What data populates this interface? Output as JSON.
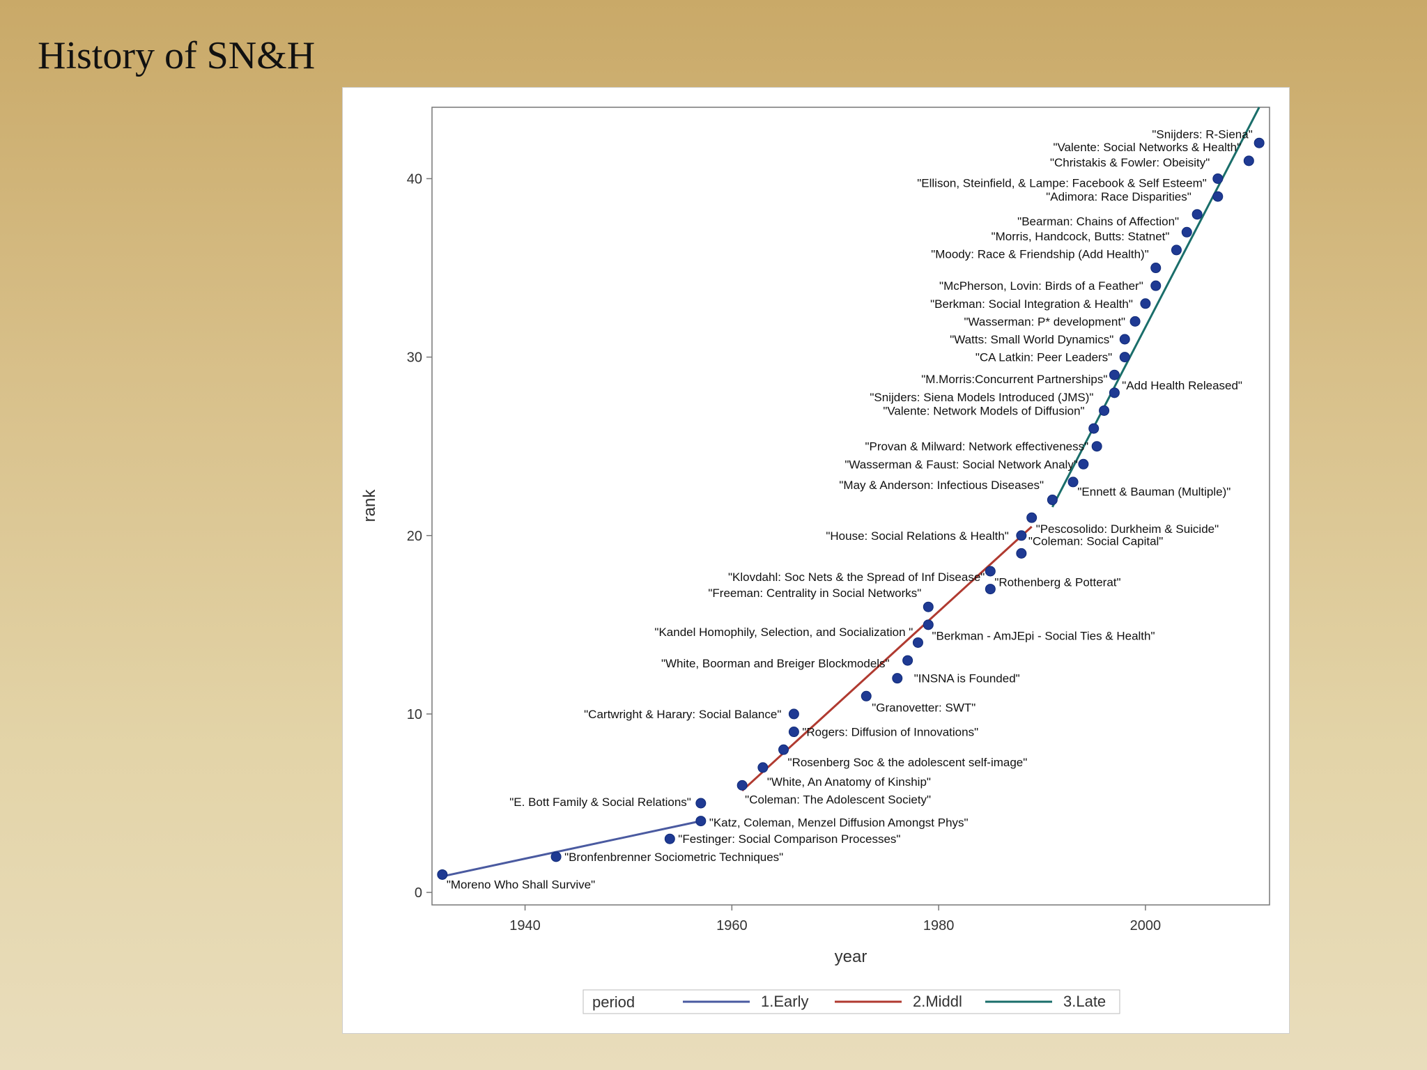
{
  "slide": {
    "title": "History of SN&H"
  },
  "chart_data": {
    "type": "scatter",
    "xlabel": "year",
    "ylabel": "rank",
    "xlim": [
      1931,
      2012
    ],
    "ylim": [
      -0.7,
      44
    ],
    "x_ticks": [
      1940,
      1960,
      1980,
      2000
    ],
    "y_ticks": [
      0,
      10,
      20,
      30,
      40
    ],
    "grid": false,
    "legend": {
      "title": "period",
      "placement": "bottom",
      "entries": [
        {
          "name": "1.Early",
          "color": "#4a5aa0"
        },
        {
          "name": "2.Middl",
          "color": "#b03a30"
        },
        {
          "name": "3.Late",
          "color": "#1a6e6a"
        }
      ]
    },
    "marker_color": "#1f3a93",
    "series_lines": [
      {
        "name": "1.Early",
        "color": "#4a5aa0",
        "x": [
          1932,
          1957
        ],
        "y": [
          0.9,
          4.0
        ]
      },
      {
        "name": "2.Middl",
        "color": "#b03a30",
        "x": [
          1961,
          1989
        ],
        "y": [
          5.7,
          20.5
        ]
      },
      {
        "name": "3.Late",
        "color": "#1a6e6a",
        "x": [
          1991,
          2011
        ],
        "y": [
          21.6,
          44.0
        ]
      }
    ],
    "points": [
      {
        "x": 1932,
        "y": 1,
        "label": "\"Moreno Who Shall Survive\"",
        "anchor": "start",
        "dx": 6,
        "dy": 20
      },
      {
        "x": 1943,
        "y": 2,
        "label": "\"Bronfenbrenner Sociometric Techniques\"",
        "anchor": "start",
        "dx": 12,
        "dy": 6
      },
      {
        "x": 1954,
        "y": 3,
        "label": "\"Festinger: Social Comparison Processes\"",
        "anchor": "start",
        "dx": 12,
        "dy": 6
      },
      {
        "x": 1957,
        "y": 4,
        "label": "\"Katz, Coleman, Menzel Diffusion Amongst Phys\"",
        "anchor": "start",
        "dx": 12,
        "dy": 8
      },
      {
        "x": 1957,
        "y": 5,
        "label": "\"E. Bott Family & Social Relations\"",
        "anchor": "end",
        "dx": -14,
        "dy": 4
      },
      {
        "x": 1961,
        "y": 6,
        "label": "\"Coleman: The Adolescent Society\"",
        "anchor": "start",
        "dx": 4,
        "dy": 26
      },
      {
        "x": 1963,
        "y": 7,
        "label": "\"White, An Anatomy of Kinship\"",
        "anchor": "start",
        "dx": 6,
        "dy": 26
      },
      {
        "x": 1965,
        "y": 8,
        "label": "\"Rosenberg Soc & the adolescent self-image\"",
        "anchor": "start",
        "dx": 6,
        "dy": 24
      },
      {
        "x": 1966,
        "y": 9,
        "label": "\"Rogers: Diffusion of Innovations\"",
        "anchor": "start",
        "dx": 12,
        "dy": 6
      },
      {
        "x": 1966,
        "y": 10,
        "label": "\"Cartwright & Harary: Social Balance\"",
        "anchor": "end",
        "dx": -18,
        "dy": 6
      },
      {
        "x": 1973,
        "y": 11,
        "label": "\"Granovetter: SWT\"",
        "anchor": "start",
        "dx": 8,
        "dy": 22
      },
      {
        "x": 1976,
        "y": 12,
        "label": "\"INSNA is Founded\"",
        "anchor": "start",
        "dx": 24,
        "dy": 6
      },
      {
        "x": 1977,
        "y": 13,
        "label": "\"White, Boorman and Breiger Blockmodels\"",
        "anchor": "end",
        "dx": -26,
        "dy": 10
      },
      {
        "x": 1978,
        "y": 14,
        "label": "\"Berkman  - AmJEpi - Social Ties & Health\"",
        "anchor": "start",
        "dx": 20,
        "dy": -4
      },
      {
        "x": 1979,
        "y": 15,
        "label": "\"Kandel Homophily, Selection, and Socialization \"",
        "anchor": "end",
        "dx": -22,
        "dy": 16
      },
      {
        "x": 1979,
        "y": 16,
        "label": "\"Freeman: Centrality in Social Networks\"",
        "anchor": "end",
        "dx": -10,
        "dy": -14
      },
      {
        "x": 1985,
        "y": 17,
        "label": "\"Rothenberg & Potterat\"",
        "anchor": "start",
        "dx": 6,
        "dy": -4
      },
      {
        "x": 1985,
        "y": 18,
        "label": "\"Klovdahl: Soc Nets & the Spread of Inf Disease\"",
        "anchor": "end",
        "dx": -8,
        "dy": 14
      },
      {
        "x": 1988,
        "y": 19,
        "label": "\"Coleman: Social Capital\"",
        "anchor": "start",
        "dx": 10,
        "dy": -12
      },
      {
        "x": 1988,
        "y": 20,
        "label": "\"House: Social Relations & Health\"",
        "anchor": "end",
        "dx": -18,
        "dy": 6
      },
      {
        "x": 1989,
        "y": 21,
        "label": "\"Pescosolido: Durkheim & Suicide\"",
        "anchor": "start",
        "dx": 6,
        "dy": 22
      },
      {
        "x": 1991,
        "y": 22,
        "label": "\"Ennett & Bauman (Multiple)\"",
        "anchor": "start",
        "dx": 36,
        "dy": -6
      },
      {
        "x": 1993,
        "y": 23,
        "label": "\"May & Anderson: Infectious Diseases\"",
        "anchor": "end",
        "dx": -42,
        "dy": 10
      },
      {
        "x": 1994,
        "y": 24,
        "label": "\"Wasserman & Faust: Social Network Analy\"",
        "anchor": "end",
        "dx": -8,
        "dy": 6
      },
      {
        "x": 1995.3,
        "y": 25,
        "label": "\"Provan & Milward: Network effectiveness\"",
        "anchor": "end",
        "dx": -12,
        "dy": 6
      },
      {
        "x": 1995,
        "y": 26,
        "label": "",
        "anchor": "start",
        "dx": 0,
        "dy": 0
      },
      {
        "x": 1996,
        "y": 27,
        "label": "\"Valente: Network Models of Diffusion\"",
        "anchor": "end",
        "dx": -28,
        "dy": 6
      },
      {
        "x": 1997,
        "y": 28,
        "label": "\"Snijders: Siena Models Introduced (JMS)\"",
        "anchor": "end",
        "dx": -30,
        "dy": 12
      },
      {
        "x": 1997,
        "y": 29,
        "label": "\"M.Morris:Concurrent Partnerships\"",
        "anchor": "end",
        "dx": -10,
        "dy": 12
      },
      {
        "x": 1998,
        "y": 30,
        "label": "\"CA Latkin: Peer Leaders\"",
        "anchor": "end",
        "dx": -18,
        "dy": 6
      },
      {
        "x": 1998,
        "y": 31,
        "label": "\"Watts: Small World Dynamics\"",
        "anchor": "end",
        "dx": -16,
        "dy": 6
      },
      {
        "x": 1999,
        "y": 32,
        "label": "\"Wasserman: P* development\"",
        "anchor": "end",
        "dx": -14,
        "dy": 6
      },
      {
        "x": 2000,
        "y": 33,
        "label": "\"Berkman: Social Integration & Health\"",
        "anchor": "end",
        "dx": -18,
        "dy": 6
      },
      {
        "x": 2001,
        "y": 34,
        "label": "\"McPherson, Lovin: Birds of a Feather\"",
        "anchor": "end",
        "dx": -18,
        "dy": 6
      },
      {
        "x": 2001,
        "y": 35,
        "label": "\"Moody: Race & Friendship (Add Health)\"",
        "anchor": "end",
        "dx": -10,
        "dy": -14
      },
      {
        "x": 2003,
        "y": 36,
        "label": "\"Morris, Handcock, Butts: Statnet\"",
        "anchor": "end",
        "dx": -10,
        "dy": -14
      },
      {
        "x": 2004,
        "y": 37,
        "label": "",
        "anchor": "start",
        "dx": 0,
        "dy": 0
      },
      {
        "x": 2005,
        "y": 38,
        "label": "\"Bearman: Chains of Affection\"",
        "anchor": "end",
        "dx": -26,
        "dy": 16
      },
      {
        "x": 2007,
        "y": 39,
        "label": "\"Adimora: Race Disparities\"",
        "anchor": "end",
        "dx": -38,
        "dy": 6
      },
      {
        "x": 2007,
        "y": 40,
        "label": "\"Ellison, Steinfield, & Lampe: Facebook & Self Esteem\"",
        "anchor": "end",
        "dx": -16,
        "dy": 12
      },
      {
        "x": 2010,
        "y": 41,
        "label": "\"Christakis & Fowler: Obeisity\"",
        "anchor": "end",
        "dx": -56,
        "dy": 8
      },
      {
        "x": 2011,
        "y": 42,
        "label": "\"Valente: Social Networks & Health\"",
        "anchor": "end",
        "dx": -26,
        "dy": 12
      }
    ],
    "annotations": [
      {
        "text": "\"Snijders: R-Siena\"",
        "x": 2010.5,
        "y": 42.5,
        "anchor": "end",
        "dx": -2,
        "dy": 6
      },
      {
        "text": "\"Add Health Released\"",
        "x": 1998,
        "y": 28.5,
        "anchor": "start",
        "dx": -4,
        "dy": 8
      }
    ]
  }
}
